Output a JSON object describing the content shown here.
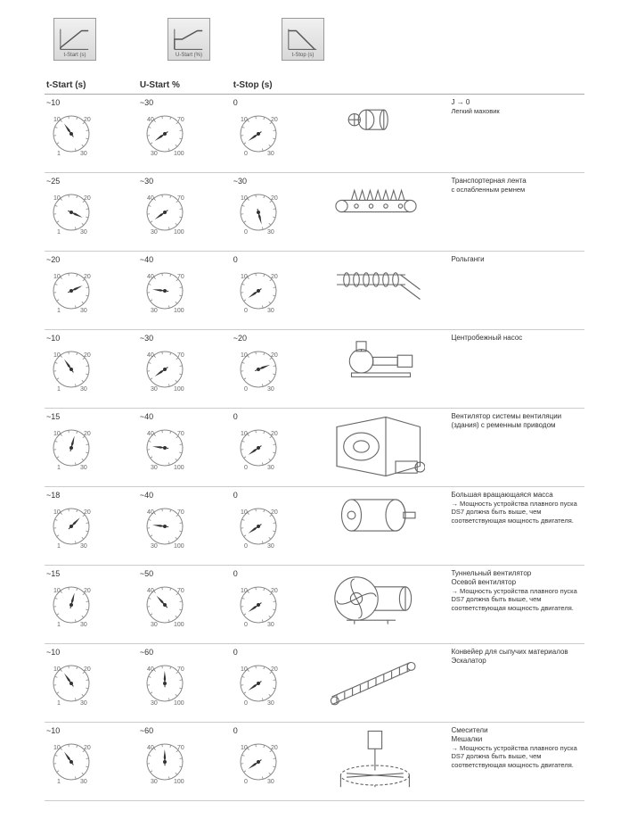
{
  "header": {
    "icons": [
      {
        "label": "t-Start (s)",
        "type": "ramp-up"
      },
      {
        "label": "U-Start (%)",
        "type": "step"
      },
      {
        "label": "t-Stop (s)",
        "type": "ramp-down"
      }
    ]
  },
  "columns": {
    "c1": "t-Start (s)",
    "c2": "U-Start %",
    "c3": "t-Stop (s)"
  },
  "dial": {
    "scales": {
      "time": {
        "min": 1,
        "max": 30,
        "labels": {
          "tl": "10",
          "tr": "20",
          "bl": "1",
          "br": "30"
        }
      },
      "percent": {
        "min": 30,
        "max": 100,
        "labels": {
          "tl": "40",
          "tr": "70",
          "bl": "30",
          "br": "100"
        }
      },
      "stop": {
        "min": 0,
        "max": 30,
        "labels": {
          "tl": "10",
          "tr": "20",
          "bl": "0",
          "br": "30"
        }
      }
    },
    "style": {
      "stroke": "#555",
      "pointer_fill": "#333",
      "tick_color": "#666",
      "label_fontsize": 7
    }
  },
  "rows": [
    {
      "tStart": "~10",
      "uStart": "~30",
      "tStop": "0",
      "tStartVal": 10,
      "uStartVal": 30,
      "tStopVal": 0,
      "equip": "flywheel",
      "descTitle": "J → 0",
      "descBody": "Легкий маховик"
    },
    {
      "tStart": "~25",
      "uStart": "~30",
      "tStop": "~30",
      "tStartVal": 25,
      "uStartVal": 30,
      "tStopVal": 30,
      "equip": "conveyor",
      "descTitle": "Транспортерная лента",
      "descBody": "с ослабленным ремнем"
    },
    {
      "tStart": "~20",
      "uStart": "~40",
      "tStop": "0",
      "tStartVal": 20,
      "uStartVal": 40,
      "tStopVal": 0,
      "equip": "rollers",
      "descTitle": "Рольганги",
      "descBody": ""
    },
    {
      "tStart": "~10",
      "uStart": "~30",
      "tStop": "~20",
      "tStartVal": 10,
      "uStartVal": 30,
      "tStopVal": 20,
      "equip": "pump",
      "descTitle": "Центробежный насос",
      "descBody": ""
    },
    {
      "tStart": "~15",
      "uStart": "~40",
      "tStop": "0",
      "tStartVal": 15,
      "uStartVal": 40,
      "tStopVal": 0,
      "equip": "buildingfan",
      "descTitle": "Вентилятор системы венти­ляции (здания) с ременным приводом",
      "descBody": ""
    },
    {
      "tStart": "~18",
      "uStart": "~40",
      "tStop": "0",
      "tStartVal": 18,
      "uStartVal": 40,
      "tStopVal": 0,
      "equip": "largemass",
      "descTitle": "Большая вращающаяся масса",
      "descBody": "→ Мощность устройства плав­ного пуска DS7 должна быть выше, чем соответствующая мощность двигателя."
    },
    {
      "tStart": "~15",
      "uStart": "~50",
      "tStop": "0",
      "tStartVal": 15,
      "uStartVal": 50,
      "tStopVal": 0,
      "equip": "axialfan",
      "descTitle": "Туннельный вентилятор\nОсевой вентилятор",
      "descBody": "→ Мощность устройства плав­ного пуска DS7 должна быть выше, чем соответствующая мощность двигателя."
    },
    {
      "tStart": "~10",
      "uStart": "~60",
      "tStop": "0",
      "tStartVal": 10,
      "uStartVal": 60,
      "tStopVal": 0,
      "equip": "escalator",
      "descTitle": "Конвейер для сыпучих мате­риалов\nЭскалатор",
      "descBody": ""
    },
    {
      "tStart": "~10",
      "uStart": "~60",
      "tStop": "0",
      "tStartVal": 10,
      "uStartVal": 60,
      "tStopVal": 0,
      "equip": "mixer",
      "descTitle": "Смесители\n Мешалки",
      "descBody": "→ Мощность устройства плав­ного пуска DS7 должна быть выше, чем соответствующая мощность двигателя."
    }
  ],
  "colors": {
    "border": "#cccccc",
    "header_border": "#aaaaaa",
    "text": "#333333",
    "equip_stroke": "#666666"
  }
}
